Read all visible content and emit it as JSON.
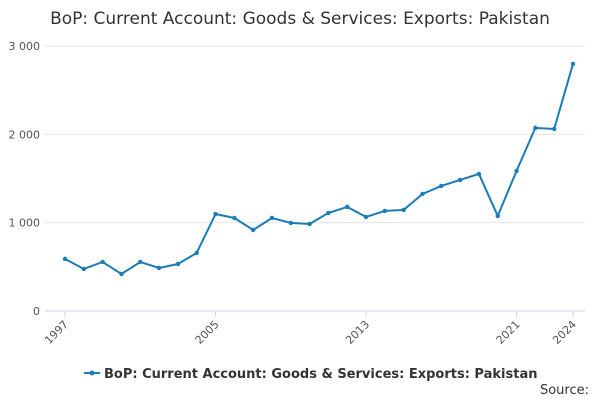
{
  "chart_data": {
    "type": "line",
    "title": "BoP: Current Account: Goods & Services: Exports: Pakistan",
    "x": [
      1997,
      1998,
      1999,
      2000,
      2001,
      2002,
      2003,
      2004,
      2005,
      2006,
      2007,
      2008,
      2009,
      2010,
      2011,
      2012,
      2013,
      2014,
      2015,
      2016,
      2017,
      2018,
      2019,
      2020,
      2021,
      2022,
      2023,
      2024
    ],
    "series": [
      {
        "name": "BoP: Current Account: Goods & Services: Exports: Pakistan",
        "color": "#1a7cb8",
        "values": [
          590,
          476,
          555,
          419,
          555,
          487,
          532,
          657,
          1098,
          1053,
          917,
          1053,
          997,
          985,
          1110,
          1178,
          1065,
          1133,
          1144,
          1325,
          1416,
          1484,
          1552,
          1076,
          1586,
          2073,
          2061,
          2797
        ]
      }
    ],
    "xlim": [
      1997,
      2024
    ],
    "xticks": [
      1997,
      2005,
      2013,
      2021,
      2024
    ],
    "ylim": [
      0,
      3000
    ],
    "yticks": [
      0,
      {
        "value": 1000,
        "label": "1 000"
      },
      {
        "value": 2000,
        "label": "2 000"
      },
      {
        "value": 3000,
        "label": "3 000"
      }
    ],
    "grid": true,
    "legend": "bottom",
    "source": "Source:"
  }
}
